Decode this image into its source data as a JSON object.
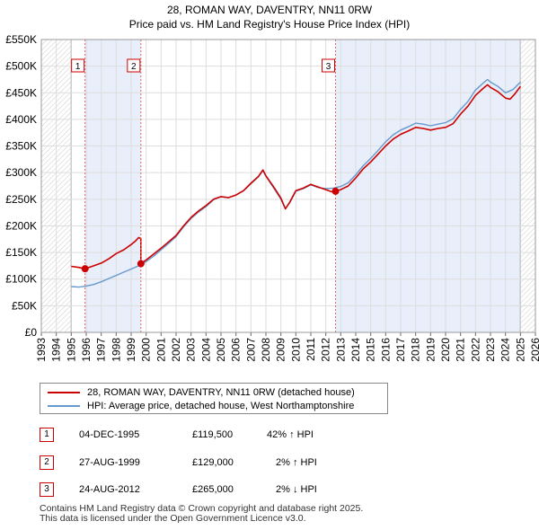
{
  "chart_data": {
    "type": "line",
    "title": "28, ROMAN WAY, DAVENTRY, NN11 0RW",
    "subtitle": "Price paid vs. HM Land Registry's House Price Index (HPI)",
    "xlim": [
      1993,
      2026
    ],
    "ylim": [
      0,
      550000
    ],
    "y_ticks": [
      0,
      50000,
      100000,
      150000,
      200000,
      250000,
      300000,
      350000,
      400000,
      450000,
      500000,
      550000
    ],
    "y_tick_labels": [
      "£0",
      "£50K",
      "£100K",
      "£150K",
      "£200K",
      "£250K",
      "£300K",
      "£350K",
      "£400K",
      "£450K",
      "£500K",
      "£550K"
    ],
    "x_ticks": [
      1993,
      1994,
      1995,
      1996,
      1997,
      1998,
      1999,
      2000,
      2001,
      2002,
      2003,
      2004,
      2005,
      2006,
      2007,
      2008,
      2009,
      2010,
      2011,
      2012,
      2013,
      2014,
      2015,
      2016,
      2017,
      2018,
      2019,
      2020,
      2021,
      2022,
      2023,
      2024,
      2025,
      2026
    ],
    "x_tick_labels": [
      "1993",
      "1994",
      "1995",
      "1996",
      "1997",
      "1998",
      "1999",
      "2000",
      "2001",
      "2002",
      "2003",
      "2004",
      "2005",
      "2006",
      "2007",
      "2008",
      "2009",
      "2010",
      "2011",
      "2012",
      "2013",
      "2014",
      "2015",
      "2016",
      "2017",
      "2018",
      "2019",
      "2020",
      "2021",
      "2022",
      "2023",
      "2024",
      "2025",
      "2026"
    ],
    "data_window": [
      1995.0,
      2025.0
    ],
    "series": [
      {
        "name": "28, ROMAN WAY, DAVENTRY, NN11 0RW (detached house)",
        "color": "#cc0000",
        "x": [
          1995.0,
          1995.5,
          1995.92,
          1996.5,
          1997.0,
          1997.5,
          1998.0,
          1998.5,
          1999.0,
          1999.3,
          1999.5,
          1999.65,
          1999.65,
          2000.0,
          2000.5,
          2001.0,
          2001.5,
          2002.0,
          2002.5,
          2003.0,
          2003.5,
          2004.0,
          2004.5,
          2005.0,
          2005.5,
          2006.0,
          2006.5,
          2007.0,
          2007.5,
          2007.8,
          2008.0,
          2008.5,
          2009.0,
          2009.3,
          2009.6,
          2010.0,
          2010.5,
          2011.0,
          2011.5,
          2012.0,
          2012.4,
          2012.65,
          2013.0,
          2013.5,
          2014.0,
          2014.5,
          2015.0,
          2015.5,
          2016.0,
          2016.5,
          2017.0,
          2017.5,
          2018.0,
          2018.5,
          2019.0,
          2019.5,
          2020.0,
          2020.5,
          2021.0,
          2021.5,
          2022.0,
          2022.5,
          2022.8,
          2023.0,
          2023.5,
          2024.0,
          2024.3,
          2024.6,
          2025.0
        ],
        "y": [
          124000,
          122000,
          119500,
          125000,
          130000,
          138000,
          148000,
          155000,
          165000,
          172000,
          178000,
          176000,
          129000,
          136000,
          147000,
          158000,
          170000,
          182000,
          200000,
          216000,
          228000,
          238000,
          250000,
          255000,
          253000,
          258000,
          266000,
          280000,
          293000,
          305000,
          294000,
          274000,
          252000,
          232000,
          245000,
          266000,
          271000,
          278000,
          273000,
          268000,
          264000,
          265000,
          268000,
          275000,
          290000,
          307000,
          320000,
          335000,
          350000,
          363000,
          372000,
          378000,
          385000,
          383000,
          380000,
          383000,
          385000,
          392000,
          410000,
          425000,
          445000,
          458000,
          465000,
          460000,
          452000,
          440000,
          438000,
          447000,
          462000
        ]
      },
      {
        "name": "HPI: Average price, detached house, West Northamptonshire",
        "color": "#6699cc",
        "x": [
          1995.0,
          1995.5,
          1996.0,
          1996.5,
          1997.0,
          1997.5,
          1998.0,
          1998.5,
          1999.0,
          1999.5,
          2000.0,
          2000.5,
          2001.0,
          2001.5,
          2002.0,
          2002.5,
          2003.0,
          2003.5,
          2004.0,
          2004.5,
          2005.0,
          2005.5,
          2006.0,
          2006.5,
          2007.0,
          2007.5,
          2007.8,
          2008.0,
          2008.5,
          2009.0,
          2009.3,
          2009.6,
          2010.0,
          2010.5,
          2011.0,
          2011.5,
          2012.0,
          2012.5,
          2013.0,
          2013.5,
          2014.0,
          2014.5,
          2015.0,
          2015.5,
          2016.0,
          2016.5,
          2017.0,
          2017.5,
          2018.0,
          2018.5,
          2019.0,
          2019.5,
          2020.0,
          2020.5,
          2021.0,
          2021.5,
          2022.0,
          2022.5,
          2022.8,
          2023.0,
          2023.5,
          2024.0,
          2024.5,
          2025.0
        ],
        "y": [
          86000,
          85000,
          87000,
          90000,
          95000,
          101000,
          107000,
          113000,
          119000,
          125000,
          133000,
          143000,
          155000,
          167000,
          180000,
          198000,
          214000,
          226000,
          236000,
          249000,
          255000,
          253000,
          258000,
          266000,
          279000,
          292000,
          304000,
          293000,
          272000,
          250000,
          232000,
          244000,
          265000,
          270000,
          277000,
          272000,
          270000,
          271000,
          274000,
          281000,
          296000,
          313000,
          327000,
          342000,
          358000,
          371000,
          380000,
          386000,
          393000,
          391000,
          388000,
          391000,
          394000,
          401000,
          419000,
          434000,
          455000,
          468000,
          475000,
          470000,
          462000,
          450000,
          456000,
          470000
        ]
      }
    ],
    "sales": [
      {
        "label": "1",
        "x": 1995.92,
        "y": 119500,
        "date": "04-DEC-1995",
        "price": "£119,500",
        "hpi": "42% ↑ HPI"
      },
      {
        "label": "2",
        "x": 1999.65,
        "y": 129000,
        "date": "27-AUG-1999",
        "price": "£129,000",
        "hpi": "2% ↑ HPI"
      },
      {
        "label": "3",
        "x": 2012.65,
        "y": 265000,
        "date": "24-AUG-2012",
        "price": "£265,000",
        "hpi": "2% ↓ HPI"
      }
    ],
    "legend_position": "below"
  },
  "footer": {
    "line1": "Contains HM Land Registry data © Crown copyright and database right 2025.",
    "line2": "This data is licensed under the Open Government Licence v3.0."
  }
}
